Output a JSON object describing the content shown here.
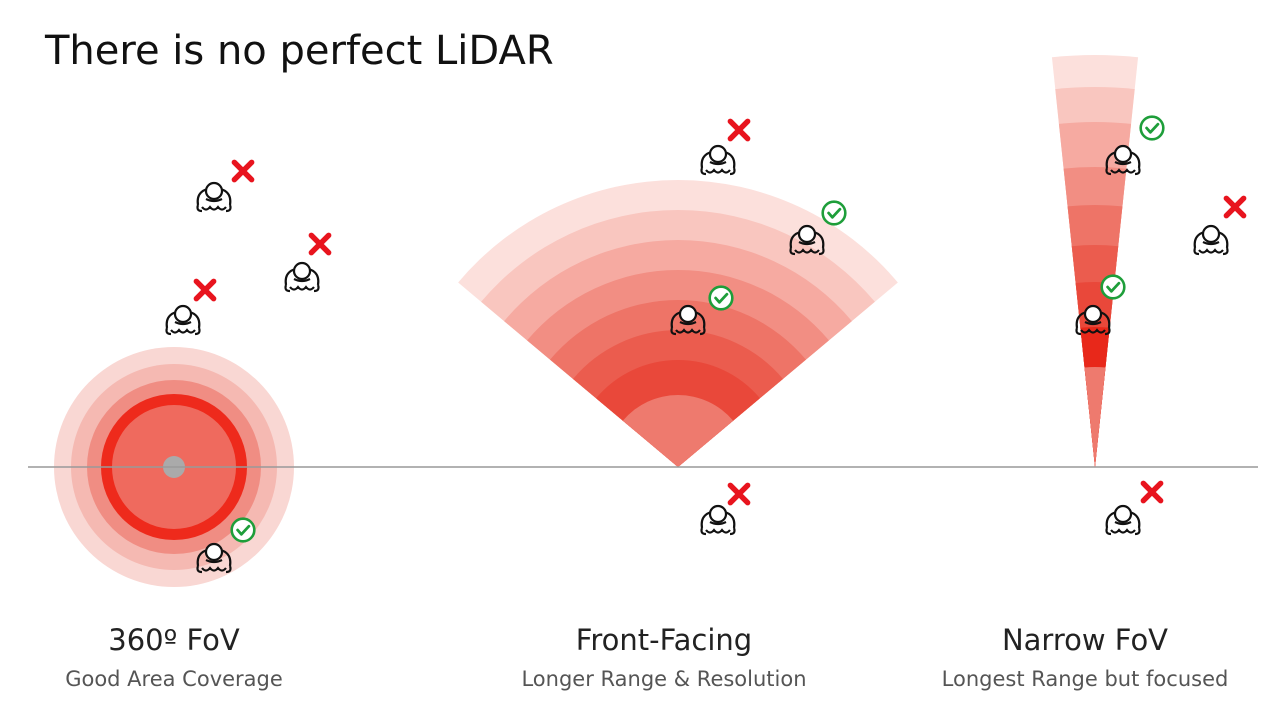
{
  "title": "There is no perfect LiDAR",
  "panels": [
    {
      "title": "360º FoV",
      "subtitle": "Good Area Coverage"
    },
    {
      "title": "Front-Facing",
      "subtitle": "Longer Range & Resolution"
    },
    {
      "title": "Narrow FoV",
      "subtitle": "Longest Range but focused"
    }
  ]
}
